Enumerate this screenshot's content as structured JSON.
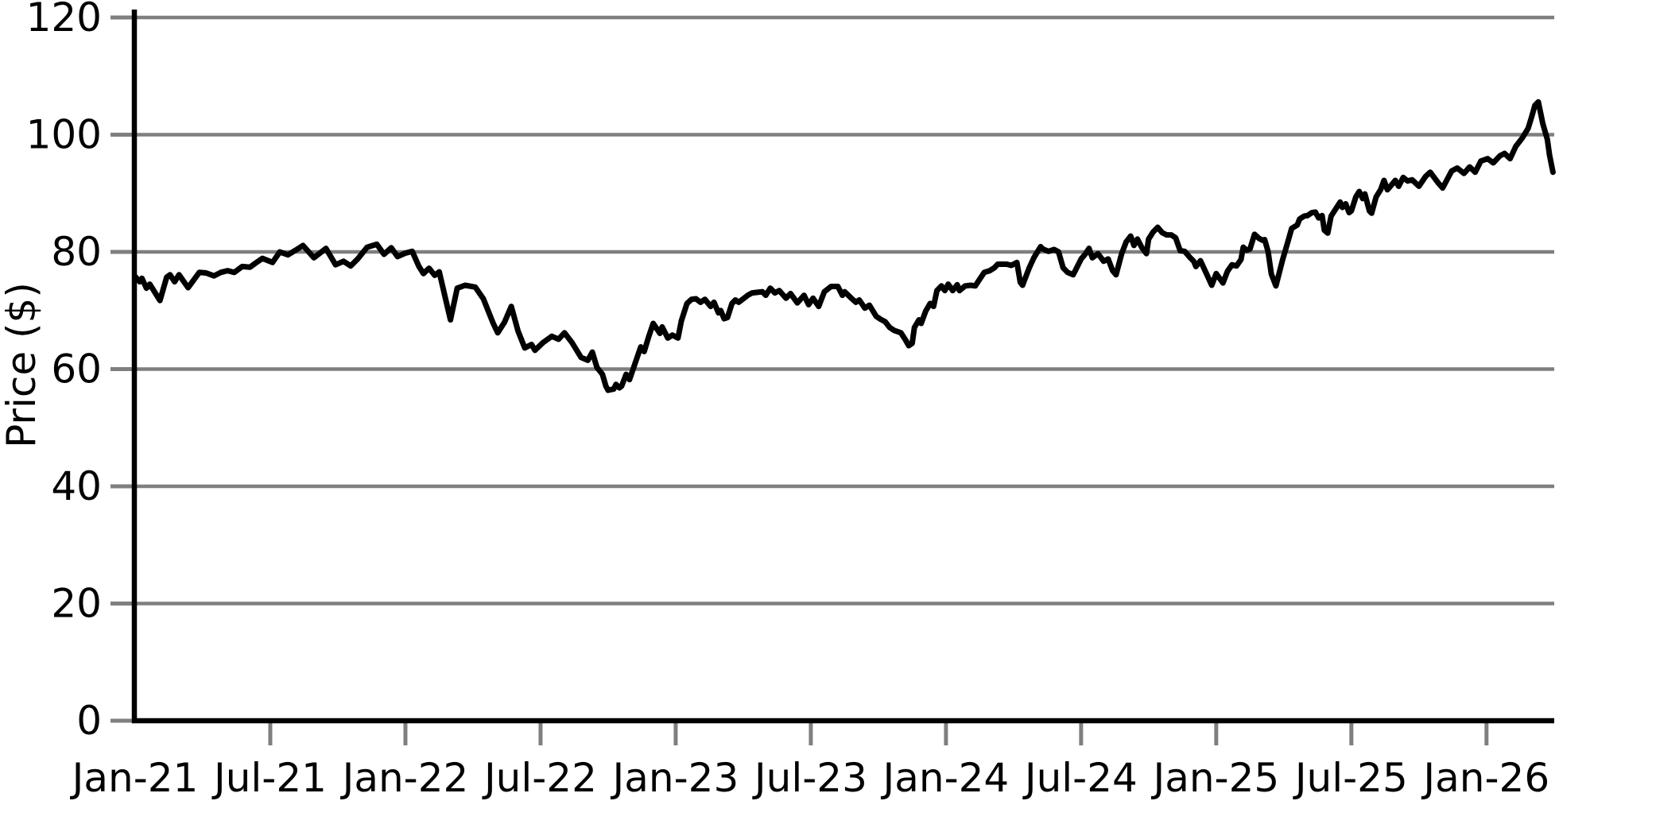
{
  "chart_data": {
    "type": "line",
    "title": "",
    "xlabel": "",
    "ylabel": "Price ($)",
    "ylim": [
      0,
      120
    ],
    "yticks": [
      0,
      20,
      40,
      60,
      80,
      100,
      120
    ],
    "ytick_labels": [
      "0",
      "20",
      "40",
      "60",
      "80",
      "100",
      "120"
    ],
    "xticks_months": [
      0,
      6,
      12,
      18,
      24,
      30,
      36,
      42,
      48,
      54,
      60
    ],
    "xtick_labels": [
      "Jan-21",
      "Jul-21",
      "Jan-22",
      "Jul-22",
      "Jan-23",
      "Jul-23",
      "Jan-24",
      "Jul-24",
      "Jan-25",
      "Jul-25",
      "Jan-26"
    ],
    "x_range_months": [
      0,
      62.95
    ],
    "grid": "horizontal-only",
    "legend": "none",
    "line_color": "#000000",
    "grid_color": "#7f7f7f",
    "tick_color": "#7f7f7f",
    "spine_color": "#000000",
    "label_color": "#000000",
    "background_color": "#ffffff",
    "series": [
      {
        "points_format": "[months_since_Jan_2021, price_usd]",
        "points": [
          [
            0,
            75.8
          ],
          [
            0.2,
            74.9
          ],
          [
            0.3,
            75.5
          ],
          [
            0.5,
            73.8
          ],
          [
            0.65,
            74.5
          ],
          [
            1.1,
            71.7
          ],
          [
            1.4,
            75.7
          ],
          [
            1.55,
            76.1
          ],
          [
            1.75,
            74.9
          ],
          [
            1.95,
            76.1
          ],
          [
            2.35,
            73.9
          ],
          [
            2.85,
            76.5
          ],
          [
            3.15,
            76.4
          ],
          [
            3.5,
            75.9
          ],
          [
            3.8,
            76.5
          ],
          [
            4.1,
            76.8
          ],
          [
            4.4,
            76.5
          ],
          [
            4.75,
            77.5
          ],
          [
            5.1,
            77.4
          ],
          [
            5.35,
            78.1
          ],
          [
            5.65,
            78.9
          ],
          [
            6.1,
            78.2
          ],
          [
            6.42,
            80.0
          ],
          [
            6.78,
            79.5
          ],
          [
            7.13,
            80.3
          ],
          [
            7.45,
            81.1
          ],
          [
            7.94,
            79.0
          ],
          [
            8.47,
            80.6
          ],
          [
            8.9,
            77.8
          ],
          [
            9.25,
            78.4
          ],
          [
            9.57,
            77.6
          ],
          [
            9.88,
            78.8
          ],
          [
            10.3,
            80.8
          ],
          [
            10.73,
            81.3
          ],
          [
            11.05,
            79.6
          ],
          [
            11.37,
            80.7
          ],
          [
            11.65,
            79.2
          ],
          [
            12.0,
            79.8
          ],
          [
            12.3,
            80.1
          ],
          [
            12.6,
            77.5
          ],
          [
            12.8,
            76.3
          ],
          [
            13.05,
            77.2
          ],
          [
            13.3,
            76.0
          ],
          [
            13.5,
            76.6
          ],
          [
            14.0,
            68.4
          ],
          [
            14.3,
            73.8
          ],
          [
            14.65,
            74.3
          ],
          [
            15.1,
            74.0
          ],
          [
            15.46,
            72.0
          ],
          [
            15.9,
            67.8
          ],
          [
            16.1,
            66.2
          ],
          [
            16.4,
            68.0
          ],
          [
            16.7,
            70.7
          ],
          [
            17.0,
            66.5
          ],
          [
            17.3,
            63.6
          ],
          [
            17.6,
            64.2
          ],
          [
            17.75,
            63.2
          ],
          [
            18.1,
            64.5
          ],
          [
            18.5,
            65.6
          ],
          [
            18.8,
            65.1
          ],
          [
            19.06,
            66.2
          ],
          [
            19.4,
            64.5
          ],
          [
            19.8,
            62.0
          ],
          [
            20.1,
            61.5
          ],
          [
            20.3,
            62.9
          ],
          [
            20.5,
            60.3
          ],
          [
            20.75,
            59.1
          ],
          [
            20.9,
            57.1
          ],
          [
            21.0,
            56.4
          ],
          [
            21.25,
            56.6
          ],
          [
            21.35,
            57.4
          ],
          [
            21.5,
            56.8
          ],
          [
            21.6,
            57.1
          ],
          [
            21.8,
            59.1
          ],
          [
            21.95,
            58.2
          ],
          [
            22.2,
            61.0
          ],
          [
            22.45,
            63.8
          ],
          [
            22.6,
            63.0
          ],
          [
            22.8,
            65.5
          ],
          [
            23.0,
            67.8
          ],
          [
            23.3,
            66.1
          ],
          [
            23.4,
            67.2
          ],
          [
            23.65,
            65.3
          ],
          [
            23.85,
            65.8
          ],
          [
            24.1,
            65.3
          ],
          [
            24.25,
            68.2
          ],
          [
            24.5,
            71.2
          ],
          [
            24.7,
            71.9
          ],
          [
            24.9,
            72.0
          ],
          [
            25.1,
            71.4
          ],
          [
            25.3,
            71.9
          ],
          [
            25.55,
            70.7
          ],
          [
            25.7,
            71.4
          ],
          [
            25.9,
            69.6
          ],
          [
            26.0,
            70.0
          ],
          [
            26.15,
            68.6
          ],
          [
            26.3,
            68.8
          ],
          [
            26.5,
            71.2
          ],
          [
            26.65,
            71.8
          ],
          [
            26.8,
            71.4
          ],
          [
            27.2,
            72.6
          ],
          [
            27.4,
            73.0
          ],
          [
            27.85,
            73.2
          ],
          [
            28.0,
            72.6
          ],
          [
            28.2,
            73.8
          ],
          [
            28.4,
            73.0
          ],
          [
            28.6,
            73.4
          ],
          [
            28.9,
            72.1
          ],
          [
            29.1,
            72.9
          ],
          [
            29.4,
            71.3
          ],
          [
            29.7,
            72.6
          ],
          [
            29.9,
            71.0
          ],
          [
            30.1,
            72.1
          ],
          [
            30.35,
            70.7
          ],
          [
            30.6,
            73.2
          ],
          [
            30.9,
            74.1
          ],
          [
            31.2,
            74.1
          ],
          [
            31.4,
            72.6
          ],
          [
            31.5,
            73.2
          ],
          [
            31.8,
            72.1
          ],
          [
            32.0,
            71.4
          ],
          [
            32.15,
            71.8
          ],
          [
            32.4,
            70.4
          ],
          [
            32.6,
            70.9
          ],
          [
            32.9,
            69.0
          ],
          [
            33.1,
            68.5
          ],
          [
            33.3,
            68.1
          ],
          [
            33.5,
            67.1
          ],
          [
            33.7,
            66.6
          ],
          [
            34.0,
            66.2
          ],
          [
            34.2,
            65.0
          ],
          [
            34.35,
            64.0
          ],
          [
            34.5,
            64.4
          ],
          [
            34.6,
            67.1
          ],
          [
            34.8,
            68.4
          ],
          [
            34.9,
            67.8
          ],
          [
            35.1,
            69.9
          ],
          [
            35.3,
            71.2
          ],
          [
            35.45,
            70.7
          ],
          [
            35.6,
            73.4
          ],
          [
            35.8,
            74.2
          ],
          [
            35.95,
            73.4
          ],
          [
            36.1,
            74.5
          ],
          [
            36.3,
            73.4
          ],
          [
            36.5,
            74.4
          ],
          [
            36.6,
            73.4
          ],
          [
            36.85,
            74.2
          ],
          [
            37.1,
            74.3
          ],
          [
            37.3,
            74.2
          ],
          [
            37.7,
            76.5
          ],
          [
            37.95,
            76.8
          ],
          [
            38.15,
            77.3
          ],
          [
            38.3,
            77.9
          ],
          [
            38.7,
            77.9
          ],
          [
            38.9,
            77.7
          ],
          [
            39.15,
            78.2
          ],
          [
            39.3,
            74.8
          ],
          [
            39.4,
            74.3
          ],
          [
            39.7,
            77.3
          ],
          [
            39.9,
            79.0
          ],
          [
            40.2,
            80.9
          ],
          [
            40.3,
            80.5
          ],
          [
            40.55,
            80.1
          ],
          [
            40.8,
            80.4
          ],
          [
            41.0,
            80.0
          ],
          [
            41.2,
            77.3
          ],
          [
            41.4,
            76.5
          ],
          [
            41.65,
            76.1
          ],
          [
            42.0,
            78.8
          ],
          [
            42.2,
            79.7
          ],
          [
            42.35,
            80.6
          ],
          [
            42.5,
            79.0
          ],
          [
            42.75,
            79.7
          ],
          [
            43.0,
            78.4
          ],
          [
            43.2,
            78.8
          ],
          [
            43.4,
            76.8
          ],
          [
            43.55,
            76.1
          ],
          [
            43.8,
            79.7
          ],
          [
            44.0,
            81.7
          ],
          [
            44.2,
            82.7
          ],
          [
            44.35,
            81.1
          ],
          [
            44.5,
            82.2
          ],
          [
            44.7,
            80.7
          ],
          [
            44.9,
            79.7
          ],
          [
            45.0,
            82.2
          ],
          [
            45.2,
            83.4
          ],
          [
            45.4,
            84.2
          ],
          [
            45.6,
            83.3
          ],
          [
            45.8,
            82.9
          ],
          [
            46.0,
            82.9
          ],
          [
            46.2,
            82.4
          ],
          [
            46.4,
            80.2
          ],
          [
            46.6,
            80.1
          ],
          [
            46.8,
            79.2
          ],
          [
            47.0,
            78.4
          ],
          [
            47.1,
            77.5
          ],
          [
            47.3,
            78.5
          ],
          [
            47.6,
            76.0
          ],
          [
            47.8,
            74.3
          ],
          [
            48.0,
            76.3
          ],
          [
            48.3,
            74.7
          ],
          [
            48.5,
            76.7
          ],
          [
            48.7,
            77.8
          ],
          [
            48.9,
            77.6
          ],
          [
            49.1,
            78.7
          ],
          [
            49.2,
            80.8
          ],
          [
            49.35,
            80.3
          ],
          [
            49.5,
            80.5
          ],
          [
            49.7,
            83.0
          ],
          [
            49.9,
            82.3
          ],
          [
            50.05,
            82.0
          ],
          [
            50.15,
            82.1
          ],
          [
            50.3,
            80.1
          ],
          [
            50.45,
            76.2
          ],
          [
            50.65,
            74.2
          ],
          [
            50.95,
            78.7
          ],
          [
            51.2,
            82.0
          ],
          [
            51.35,
            84.0
          ],
          [
            51.6,
            84.6
          ],
          [
            51.7,
            85.6
          ],
          [
            51.9,
            86.1
          ],
          [
            52.05,
            86.2
          ],
          [
            52.25,
            86.7
          ],
          [
            52.4,
            86.8
          ],
          [
            52.55,
            85.8
          ],
          [
            52.7,
            86.2
          ],
          [
            52.8,
            83.7
          ],
          [
            52.95,
            83.2
          ],
          [
            53.1,
            86.1
          ],
          [
            53.3,
            87.3
          ],
          [
            53.5,
            88.5
          ],
          [
            53.6,
            87.6
          ],
          [
            53.75,
            88.2
          ],
          [
            53.9,
            86.7
          ],
          [
            54.0,
            87.0
          ],
          [
            54.2,
            89.4
          ],
          [
            54.35,
            90.3
          ],
          [
            54.5,
            89.1
          ],
          [
            54.6,
            89.9
          ],
          [
            54.8,
            87.0
          ],
          [
            54.9,
            86.6
          ],
          [
            55.1,
            89.4
          ],
          [
            55.3,
            90.6
          ],
          [
            55.45,
            92.2
          ],
          [
            55.6,
            90.6
          ],
          [
            55.8,
            91.5
          ],
          [
            55.95,
            92.2
          ],
          [
            56.1,
            91.2
          ],
          [
            56.3,
            92.7
          ],
          [
            56.5,
            92.1
          ],
          [
            56.7,
            92.3
          ],
          [
            57.0,
            91.2
          ],
          [
            57.3,
            92.9
          ],
          [
            57.5,
            93.6
          ],
          [
            57.85,
            91.8
          ],
          [
            58.05,
            90.9
          ],
          [
            58.45,
            93.8
          ],
          [
            58.7,
            94.3
          ],
          [
            59.0,
            93.4
          ],
          [
            59.25,
            94.5
          ],
          [
            59.5,
            93.6
          ],
          [
            59.75,
            95.5
          ],
          [
            60.05,
            95.9
          ],
          [
            60.3,
            95.2
          ],
          [
            60.6,
            96.4
          ],
          [
            60.8,
            96.8
          ],
          [
            61.05,
            95.9
          ],
          [
            61.3,
            98.0
          ],
          [
            61.6,
            99.5
          ],
          [
            61.85,
            101.1
          ],
          [
            62.0,
            103.0
          ],
          [
            62.15,
            105.0
          ],
          [
            62.3,
            105.6
          ],
          [
            62.5,
            101.9
          ],
          [
            62.7,
            99.2
          ],
          [
            62.8,
            96.5
          ],
          [
            62.95,
            93.6
          ]
        ]
      }
    ]
  }
}
